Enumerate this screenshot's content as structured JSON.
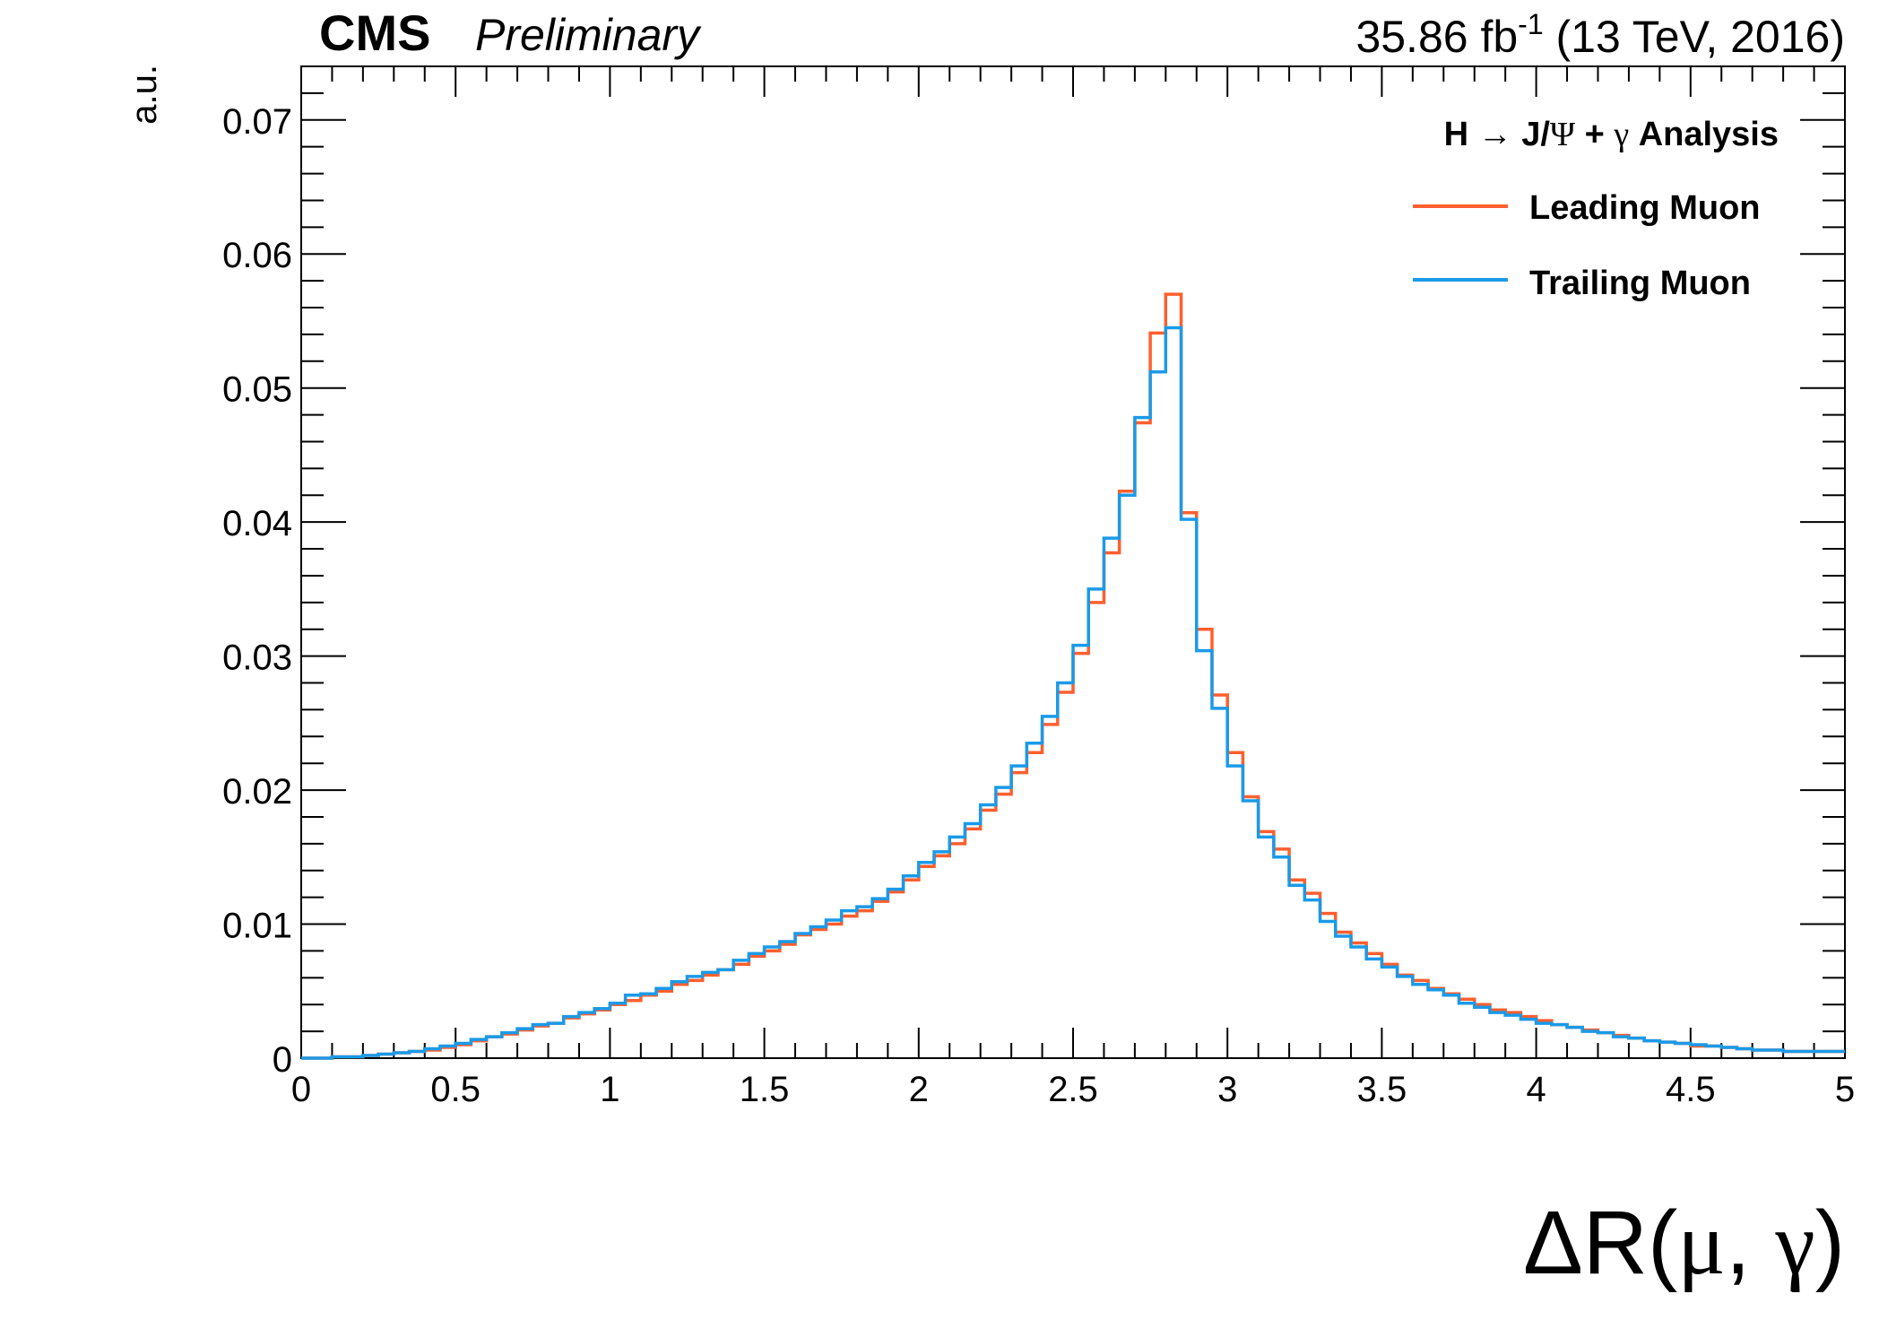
{
  "header": {
    "experiment": "CMS",
    "status": "Preliminary",
    "lumi_value": "35.86 fb",
    "lumi_exponent": "-1",
    "lumi_rest": " (13 TeV, 2016)"
  },
  "legend": {
    "title_h": "H",
    "title_arrow": "→",
    "title_j": "J/",
    "title_psi": "Ψ",
    "title_plus": "+",
    "title_gamma": "γ",
    "title_tail": "Analysis"
  },
  "colors": {
    "leading": "#ff5f2e",
    "trailing": "#1a9ae8"
  },
  "chart_data": {
    "type": "histogram",
    "xlabel_delta": "Δ",
    "xlabel_r": "R(",
    "xlabel_mu": "μ",
    "xlabel_sep": ", ",
    "xlabel_gamma": "γ",
    "xlabel_close": ")",
    "ylabel": "a.u.",
    "xlim": [
      0,
      5
    ],
    "ylim": [
      0,
      0.074
    ],
    "x_ticks": [
      0,
      0.5,
      1,
      1.5,
      2,
      2.5,
      3,
      3.5,
      4,
      4.5,
      5
    ],
    "x_tick_labels": [
      "0",
      "0.5",
      "1",
      "1.5",
      "2",
      "2.5",
      "3",
      "3.5",
      "4",
      "4.5",
      "5"
    ],
    "y_ticks": [
      0,
      0.01,
      0.02,
      0.03,
      0.04,
      0.05,
      0.06,
      0.07
    ],
    "y_tick_labels": [
      "0",
      "0.01",
      "0.02",
      "0.03",
      "0.04",
      "0.05",
      "0.06",
      "0.07"
    ],
    "bin_width": 0.05,
    "grid": false,
    "legend_position": "top-right",
    "series": [
      {
        "name": "Leading Muon",
        "values": [
          0.0,
          0.0,
          0.0001,
          0.0001,
          0.0002,
          0.0003,
          0.0004,
          0.0005,
          0.0006,
          0.0008,
          0.001,
          0.0013,
          0.0016,
          0.0018,
          0.0021,
          0.0024,
          0.0026,
          0.003,
          0.0033,
          0.0036,
          0.004,
          0.0043,
          0.0047,
          0.005,
          0.0055,
          0.0058,
          0.0062,
          0.0066,
          0.007,
          0.0076,
          0.008,
          0.0085,
          0.0092,
          0.0096,
          0.01,
          0.0106,
          0.011,
          0.0117,
          0.0124,
          0.0133,
          0.0143,
          0.0151,
          0.016,
          0.0171,
          0.0185,
          0.0197,
          0.0213,
          0.0228,
          0.0249,
          0.0273,
          0.0302,
          0.034,
          0.0377,
          0.0423,
          0.0474,
          0.0541,
          0.057,
          0.0407,
          0.032,
          0.0271,
          0.0228,
          0.0195,
          0.0169,
          0.0156,
          0.0133,
          0.0123,
          0.0108,
          0.0094,
          0.0086,
          0.0078,
          0.007,
          0.0062,
          0.0058,
          0.0052,
          0.0048,
          0.0044,
          0.004,
          0.0036,
          0.0034,
          0.0031,
          0.0028,
          0.0025,
          0.0023,
          0.0021,
          0.0019,
          0.0017,
          0.0015,
          0.0013,
          0.0012,
          0.0011,
          0.0009,
          0.0009,
          0.0008,
          0.0007,
          0.0006,
          0.0006,
          0.0005,
          0.0005,
          0.0005,
          0.0005
        ]
      },
      {
        "name": "Trailing Muon",
        "values": [
          0.0,
          0.0,
          0.0001,
          0.0001,
          0.0002,
          0.0003,
          0.0004,
          0.0005,
          0.0007,
          0.0009,
          0.0011,
          0.0014,
          0.0016,
          0.0019,
          0.0022,
          0.0025,
          0.0026,
          0.0031,
          0.0034,
          0.0037,
          0.0041,
          0.0047,
          0.0048,
          0.0052,
          0.0057,
          0.0061,
          0.0064,
          0.0066,
          0.0073,
          0.0078,
          0.0083,
          0.0087,
          0.0093,
          0.0098,
          0.0103,
          0.011,
          0.0113,
          0.0119,
          0.0126,
          0.0136,
          0.0146,
          0.0154,
          0.0165,
          0.0175,
          0.0189,
          0.0202,
          0.0218,
          0.0235,
          0.0255,
          0.028,
          0.0308,
          0.035,
          0.0388,
          0.042,
          0.0478,
          0.0512,
          0.0545,
          0.0402,
          0.0304,
          0.0261,
          0.0218,
          0.0192,
          0.0165,
          0.015,
          0.0129,
          0.0118,
          0.0102,
          0.0091,
          0.0083,
          0.0074,
          0.0068,
          0.0061,
          0.0055,
          0.0051,
          0.0047,
          0.0041,
          0.0038,
          0.0034,
          0.0032,
          0.0029,
          0.0026,
          0.0025,
          0.0023,
          0.002,
          0.0019,
          0.0016,
          0.0015,
          0.0013,
          0.0012,
          0.0011,
          0.001,
          0.0009,
          0.0008,
          0.0007,
          0.0006,
          0.0006,
          0.0005,
          0.0005,
          0.0005,
          0.0005
        ]
      }
    ]
  }
}
